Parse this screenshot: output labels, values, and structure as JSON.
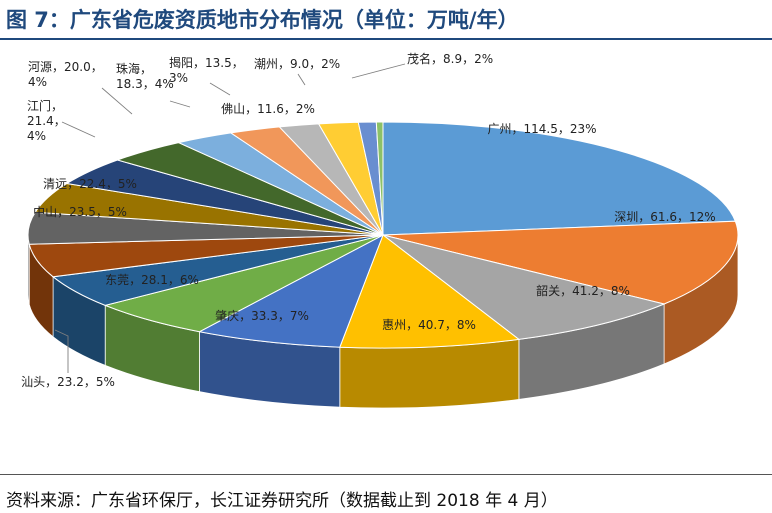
{
  "header": {
    "title": "图 7：广东省危废资质地市分布情况（单位：万吨/年）"
  },
  "footer": {
    "source": "资料来源：广东省环保厅，长江证券研究所（数据截止到 2018 年 4 月）"
  },
  "chart_data": {
    "type": "pie",
    "title": "图 7：广东省危废资质地市分布情况（单位：万吨/年）",
    "unit": "万吨/年",
    "slices": [
      {
        "name": "广州",
        "value": 114.5,
        "percent": "23%",
        "label": "广州，114.5，23%",
        "color": "#5b9bd5"
      },
      {
        "name": "深圳",
        "value": 61.6,
        "percent": "12%",
        "label": "深圳，61.6，12%",
        "color": "#ed7d31"
      },
      {
        "name": "韶关",
        "value": 41.2,
        "percent": "8%",
        "label": "韶关，41.2，8%",
        "color": "#a5a5a5"
      },
      {
        "name": "惠州",
        "value": 40.7,
        "percent": "8%",
        "label": "惠州，40.7，8%",
        "color": "#ffc000"
      },
      {
        "name": "肇庆",
        "value": 33.3,
        "percent": "7%",
        "label": "肇庆，33.3，7%",
        "color": "#4472c4"
      },
      {
        "name": "东莞",
        "value": 28.1,
        "percent": "6%",
        "label": "东莞，28.1，6%",
        "color": "#70ad47"
      },
      {
        "name": "汕头",
        "value": 23.2,
        "percent": "5%",
        "label": "汕头，23.2，5%",
        "color": "#255e91"
      },
      {
        "name": "中山",
        "value": 23.5,
        "percent": "5%",
        "label": "中山，23.5，5%",
        "color": "#9e480e"
      },
      {
        "name": "清远",
        "value": 22.4,
        "percent": "5%",
        "label": "清远，22.4，5%",
        "color": "#636363"
      },
      {
        "name": "江门",
        "value": 21.4,
        "percent": "4%",
        "label": "江门，21.4，4%",
        "color": "#997300"
      },
      {
        "name": "河源",
        "value": 20.0,
        "percent": "4%",
        "label": "河源，20.0，4%",
        "color": "#264478"
      },
      {
        "name": "珠海",
        "value": 18.3,
        "percent": "4%",
        "label": "珠海，18.3，4%",
        "color": "#43682b"
      },
      {
        "name": "揭阳",
        "value": 13.5,
        "percent": "3%",
        "label": "揭阳，13.5，3%",
        "color": "#7cafdd"
      },
      {
        "name": "佛山",
        "value": 11.6,
        "percent": "2%",
        "label": "佛山，11.6，2%",
        "color": "#f1975a"
      },
      {
        "name": "潮州",
        "value": 9.0,
        "percent": "2%",
        "label": "潮州，9.0，2%",
        "color": "#b7b7b7"
      },
      {
        "name": "茂名",
        "value": 8.9,
        "percent": "2%",
        "label": "茂名，8.9，2%",
        "color": "#ffcd33"
      },
      {
        "name": "",
        "value": 4.0,
        "percent": "",
        "label": "",
        "color": "#698ed0"
      },
      {
        "name": "",
        "value": 1.5,
        "percent": "",
        "label": "",
        "color": "#8cc168"
      }
    ]
  }
}
